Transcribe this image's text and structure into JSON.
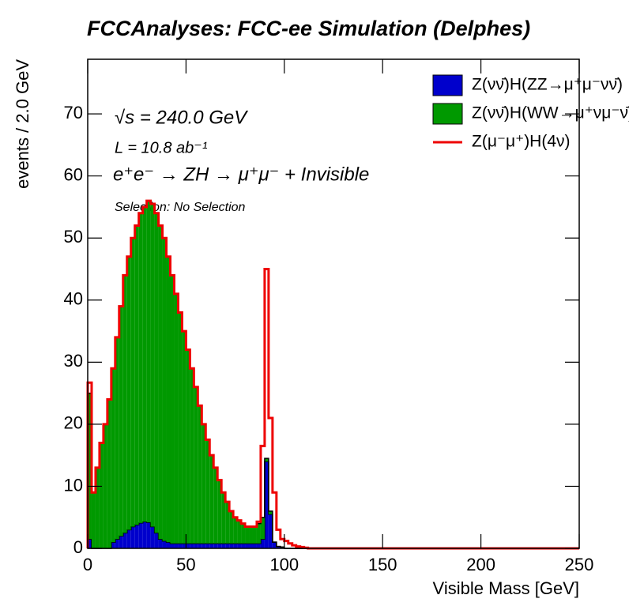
{
  "chart_data": {
    "type": "histogram",
    "stacked": true,
    "title": "FCCAnalyses: FCC-ee Simulation (Delphes)",
    "x_label": "Visible Mass [GeV]",
    "y_label": "events / 2.0 GeV",
    "annotations": [
      "√s = 240.0 GeV",
      "L = 10.8 ab⁻¹",
      "e⁺e⁻ → ZH → μ⁺μ⁻ + Invisible",
      "Selection: No Selection"
    ],
    "bins": [
      0,
      2,
      4,
      6,
      8,
      10,
      12,
      14,
      16,
      18,
      20,
      22,
      24,
      26,
      28,
      30,
      32,
      34,
      36,
      38,
      40,
      42,
      44,
      46,
      48,
      50,
      52,
      54,
      56,
      58,
      60,
      62,
      64,
      66,
      68,
      70,
      72,
      74,
      76,
      78,
      80,
      82,
      84,
      86,
      88,
      90,
      92,
      94,
      96,
      98,
      100,
      102,
      104,
      106,
      108,
      110,
      112,
      114,
      116,
      118,
      120,
      122,
      124,
      126,
      128,
      130,
      132,
      134,
      136,
      138,
      140,
      142,
      144,
      146,
      148,
      150,
      152,
      154,
      156,
      158,
      160,
      162,
      164,
      166,
      168,
      170,
      172,
      174,
      176,
      178,
      180,
      182,
      184,
      186,
      188,
      190,
      192,
      194,
      196,
      198,
      200,
      202,
      204,
      206,
      208,
      210,
      212,
      214,
      216,
      218,
      220,
      222,
      224,
      226,
      228,
      230,
      232,
      234,
      236,
      238,
      240,
      242,
      244,
      246,
      248,
      250
    ],
    "series": [
      {
        "name": "Z(νν̄)H(ZZ→μ⁺μ⁻νν̄)",
        "color": "#0000cc",
        "style": "fill",
        "values": [
          1.5,
          0,
          0,
          0,
          0,
          0,
          1,
          1.5,
          2,
          2.5,
          3,
          3.5,
          3.8,
          4.1,
          4.3,
          4.2,
          3.5,
          2.5,
          1.5,
          1.2,
          1,
          0.8,
          0.8,
          0.8,
          0.8,
          0.8,
          0.8,
          0.8,
          0.8,
          0.8,
          0.8,
          0.8,
          0.8,
          0.8,
          0.8,
          0.8,
          0.8,
          0.8,
          0.8,
          0.8,
          0.8,
          0.8,
          0.8,
          0.8,
          1.5,
          14,
          5.5,
          1,
          0.3,
          0.2,
          0,
          0,
          0,
          0,
          0,
          0,
          0,
          0,
          0,
          0,
          0,
          0,
          0,
          0,
          0,
          0,
          0,
          0,
          0,
          0,
          0,
          0,
          0,
          0,
          0,
          0,
          0,
          0,
          0,
          0,
          0,
          0,
          0,
          0,
          0,
          0,
          0,
          0,
          0,
          0,
          0,
          0,
          0,
          0,
          0,
          0,
          0,
          0,
          0,
          0,
          0,
          0,
          0,
          0,
          0,
          0,
          0,
          0,
          0,
          0,
          0,
          0,
          0,
          0,
          0,
          0,
          0,
          0,
          0,
          0,
          0,
          0,
          0,
          0,
          0
        ]
      },
      {
        "name": "Z(νν̄)H(WW→μ⁺νμ⁻ν̄)",
        "color": "#009900",
        "style": "fill",
        "values": [
          23.5,
          9,
          13,
          17,
          20,
          24,
          28,
          32.5,
          37,
          41.5,
          44,
          46.5,
          48.2,
          49.9,
          50.7,
          51.8,
          52,
          51.5,
          50.5,
          48.8,
          46,
          43.2,
          40.2,
          37.2,
          34.2,
          31.2,
          28.2,
          25.2,
          22.2,
          19.2,
          16.7,
          14.2,
          12.2,
          10.2,
          8.2,
          6.7,
          5.2,
          4.2,
          3.7,
          3.2,
          2.7,
          2.7,
          2.7,
          3.2,
          3.5,
          0.5,
          0.5,
          0,
          0,
          0,
          0,
          0,
          0,
          0,
          0,
          0,
          0,
          0,
          0,
          0,
          0,
          0,
          0,
          0,
          0,
          0,
          0,
          0,
          0,
          0,
          0,
          0,
          0,
          0,
          0,
          0,
          0,
          0,
          0,
          0,
          0,
          0,
          0,
          0,
          0,
          0,
          0,
          0,
          0,
          0,
          0,
          0,
          0,
          0,
          0,
          0,
          0,
          0,
          0,
          0,
          0,
          0,
          0,
          0,
          0,
          0,
          0,
          0,
          0,
          0,
          0,
          0,
          0,
          0,
          0,
          0,
          0,
          0,
          0,
          0,
          0,
          0,
          0,
          0,
          0
        ]
      },
      {
        "name": "Z(μ⁻μ⁺)H(4ν)",
        "color": "#ee0000",
        "style": "line",
        "values": [
          1.7,
          0,
          0,
          0,
          0,
          0,
          0,
          0,
          0,
          0,
          0,
          0,
          0,
          0,
          0,
          0,
          0,
          0,
          0,
          0,
          0,
          0,
          0,
          0,
          0,
          0,
          0,
          0,
          0,
          0,
          0,
          0,
          0,
          0,
          0,
          0,
          0,
          0,
          0,
          0,
          0,
          0,
          0,
          0.3,
          11.5,
          30.5,
          15,
          8,
          2.7,
          1.3,
          1.2,
          0.8,
          0.5,
          0.3,
          0.2,
          0.1,
          0,
          0,
          0,
          0,
          0,
          0,
          0,
          0,
          0,
          0,
          0,
          0,
          0,
          0,
          0,
          0,
          0,
          0,
          0,
          0,
          0,
          0,
          0,
          0,
          0,
          0,
          0,
          0,
          0,
          0,
          0,
          0,
          0,
          0,
          0,
          0,
          0,
          0,
          0,
          0,
          0,
          0,
          0,
          0,
          0,
          0,
          0,
          0,
          0,
          0,
          0,
          0,
          0,
          0,
          0,
          0,
          0,
          0,
          0,
          0,
          0,
          0,
          0,
          0,
          0,
          0,
          0,
          0,
          0
        ]
      }
    ],
    "xlim": [
      0,
      250
    ],
    "xticks": [
      0,
      50,
      100,
      150,
      200,
      250
    ],
    "ylim": [
      0,
      78.8
    ],
    "yticks": [
      0,
      10,
      20,
      30,
      40,
      50,
      60,
      70
    ],
    "legend": "upper right"
  }
}
